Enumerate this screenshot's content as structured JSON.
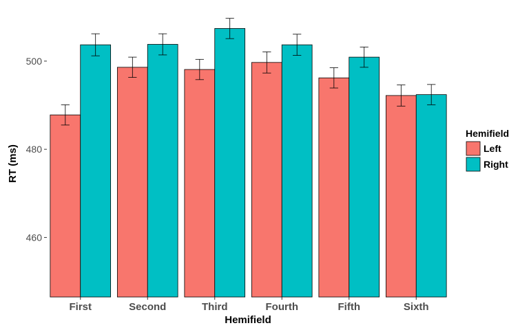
{
  "chart_data": {
    "type": "bar",
    "title": "",
    "xlabel": "Hemifield",
    "ylabel": "RT (ms)",
    "categories": [
      "First",
      "Second",
      "Third",
      "Fourth",
      "Fifth",
      "Sixth"
    ],
    "series": [
      {
        "name": "Left",
        "color": "#F8766D",
        "values": [
          487.8,
          498.6,
          498.1,
          499.7,
          496.2,
          492.2
        ],
        "error": [
          2.3,
          2.3,
          2.3,
          2.4,
          2.3,
          2.4
        ]
      },
      {
        "name": "Right",
        "color": "#00BFC4",
        "values": [
          503.7,
          503.8,
          507.4,
          503.7,
          500.9,
          492.4
        ],
        "error": [
          2.5,
          2.4,
          2.3,
          2.4,
          2.3,
          2.3
        ]
      }
    ],
    "yticks": [
      460,
      480,
      500
    ],
    "ylim": [
      446.5,
      512.3
    ],
    "grid": false,
    "legend": {
      "title": "Hemifield",
      "position": "right"
    }
  }
}
